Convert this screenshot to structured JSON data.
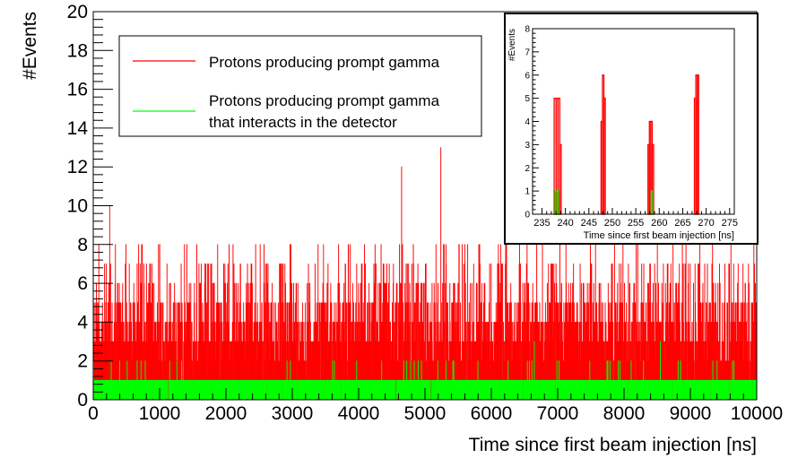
{
  "chart_data": [
    {
      "type": "histogram",
      "xlabel": "Time since first beam injection [ns]",
      "ylabel": "#Events",
      "xlim": [
        0,
        10000
      ],
      "ylim": [
        0,
        20
      ],
      "x_ticks": [
        0,
        1000,
        2000,
        3000,
        4000,
        5000,
        6000,
        7000,
        8000,
        9000,
        10000
      ],
      "y_ticks": [
        0,
        2,
        4,
        6,
        8,
        10,
        12,
        14,
        16,
        18,
        20
      ],
      "grid": false,
      "legend_position": "top-center",
      "series": [
        {
          "name": "Protons producing prompt gamma",
          "color": "#ff0000",
          "style": "filled-histogram",
          "typical_range": [
            2,
            7
          ],
          "peaks": [
            {
              "x": 5240,
              "y": 13
            },
            {
              "x": 4650,
              "y": 12
            },
            {
              "x": 250,
              "y": 10
            }
          ]
        },
        {
          "name": "Protons producing prompt gamma that interacts in the detector",
          "legend_lines": [
            "Protons producing prompt gamma",
            "that interacts in the detector"
          ],
          "color": "#00ff00",
          "style": "filled-histogram",
          "typical_range": [
            0,
            1
          ],
          "peaks": [
            {
              "x": 6650,
              "y": 3
            },
            {
              "x": 8550,
              "y": 3
            }
          ]
        }
      ]
    },
    {
      "type": "histogram",
      "inset": true,
      "xlabel": "Time since first beam injection [ns]",
      "ylabel": "#Events",
      "xlim": [
        233,
        276
      ],
      "ylim": [
        0,
        8
      ],
      "x_ticks": [
        235,
        240,
        245,
        250,
        255,
        260,
        265,
        270,
        275
      ],
      "y_ticks": [
        0,
        1,
        2,
        3,
        4,
        5,
        6,
        7,
        8
      ],
      "series": [
        {
          "name": "Protons producing prompt gamma",
          "color": "#ff0000",
          "bins": [
            {
              "x0": 237.6,
              "x1": 238.0,
              "y": 5
            },
            {
              "x0": 238.0,
              "x1": 238.4,
              "y": 5
            },
            {
              "x0": 238.4,
              "x1": 238.8,
              "y": 5
            },
            {
              "x0": 238.8,
              "x1": 239.1,
              "y": 3
            },
            {
              "x0": 247.6,
              "x1": 247.9,
              "y": 4
            },
            {
              "x0": 247.9,
              "x1": 248.2,
              "y": 6
            },
            {
              "x0": 248.2,
              "x1": 248.5,
              "y": 5
            },
            {
              "x0": 257.6,
              "x1": 257.9,
              "y": 3
            },
            {
              "x0": 257.9,
              "x1": 258.2,
              "y": 4
            },
            {
              "x0": 258.2,
              "x1": 258.5,
              "y": 4
            },
            {
              "x0": 258.5,
              "x1": 258.8,
              "y": 3
            },
            {
              "x0": 267.5,
              "x1": 267.8,
              "y": 5
            },
            {
              "x0": 267.8,
              "x1": 268.1,
              "y": 6
            },
            {
              "x0": 268.1,
              "x1": 268.4,
              "y": 6
            }
          ]
        },
        {
          "name": "Protons producing prompt gamma that interacts in the detector",
          "color": "#00ff00",
          "bins": [
            {
              "x0": 237.8,
              "x1": 238.2,
              "y": 1
            },
            {
              "x0": 238.2,
              "x1": 238.6,
              "y": 1
            },
            {
              "x0": 258.3,
              "x1": 258.6,
              "y": 1
            }
          ]
        }
      ]
    }
  ]
}
